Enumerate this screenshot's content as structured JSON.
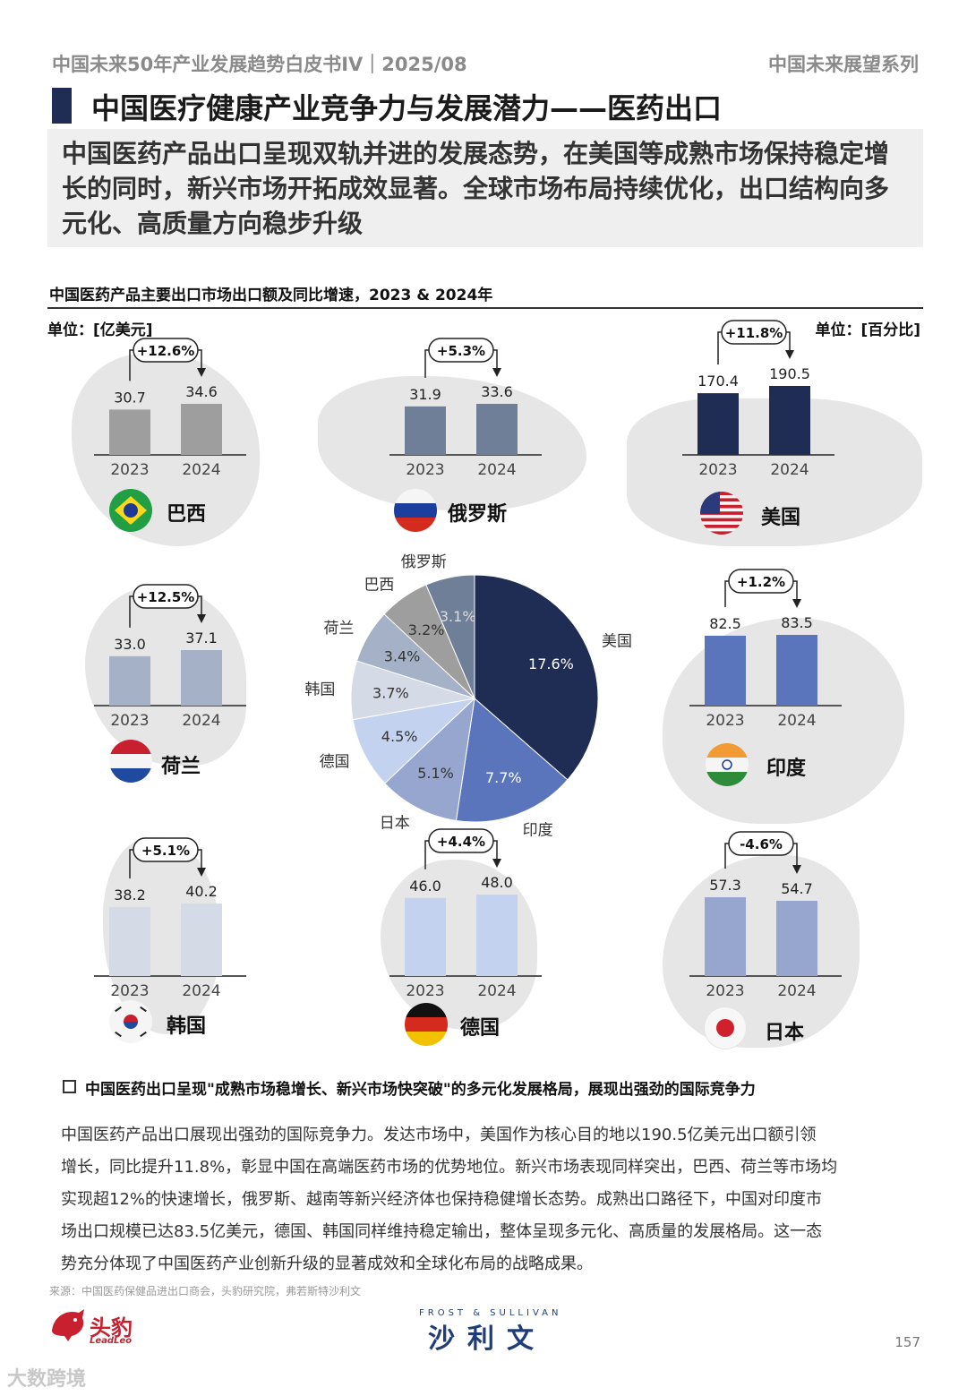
{
  "header": {
    "left": "中国未来50年产业发展趋势白皮书IV｜2025/08",
    "right": "中国未来展望系列"
  },
  "title": "中国医疗健康产业竞争力与发展潜力——医药出口",
  "summary": "中国医药产品出口呈现双轨并进的发展态势，在美国等成熟市场保持稳定增长的同时，新兴市场开拓成效显著。全球市场布局持续优化，出口结构向多元化、高质量方向稳步升级",
  "chart_heading": "中国医药产品主要出口市场出口额及同比增速，2023 & 2024年",
  "unit_left": "单位：[亿美元]",
  "unit_right": "单位：[百分比]",
  "chart_data": [
    {
      "type": "bar",
      "market": "巴西",
      "categories": [
        "2023",
        "2024"
      ],
      "values": [
        30.7,
        34.6
      ],
      "growth": "+12.6%",
      "color": "#9e9e9e",
      "flag": "brazil-flag-icon"
    },
    {
      "type": "bar",
      "market": "俄罗斯",
      "categories": [
        "2023",
        "2024"
      ],
      "values": [
        31.9,
        33.6
      ],
      "growth": "+5.3%",
      "color": "#6f7f97",
      "flag": "russia-flag-icon"
    },
    {
      "type": "bar",
      "market": "美国",
      "categories": [
        "2023",
        "2024"
      ],
      "values": [
        170.4,
        190.5
      ],
      "growth": "+11.8%",
      "color": "#1f2d54",
      "flag": "usa-flag-icon"
    },
    {
      "type": "bar",
      "market": "荷兰",
      "categories": [
        "2023",
        "2024"
      ],
      "values": [
        33.0,
        37.1
      ],
      "growth": "+12.5%",
      "color": "#a5b1c6",
      "flag": "netherlands-flag-icon"
    },
    {
      "type": "bar",
      "market": "印度",
      "categories": [
        "2023",
        "2024"
      ],
      "values": [
        82.5,
        83.5
      ],
      "growth": "+1.2%",
      "color": "#5b75bd",
      "flag": "india-flag-icon"
    },
    {
      "type": "bar",
      "market": "韩国",
      "categories": [
        "2023",
        "2024"
      ],
      "values": [
        38.2,
        40.2
      ],
      "growth": "+5.1%",
      "color": "#d4dae6",
      "flag": "korea-flag-icon"
    },
    {
      "type": "bar",
      "market": "德国",
      "categories": [
        "2023",
        "2024"
      ],
      "values": [
        46.0,
        48.0
      ],
      "growth": "+4.4%",
      "color": "#c3d3ef",
      "flag": "germany-flag-icon"
    },
    {
      "type": "bar",
      "market": "日本",
      "categories": [
        "2023",
        "2024"
      ],
      "values": [
        57.3,
        54.7
      ],
      "growth": "-4.6%",
      "color": "#97a6cf",
      "flag": "japan-flag-icon"
    },
    {
      "type": "pie",
      "slices": [
        {
          "label": "美国",
          "value": 17.6,
          "text": "17.6%",
          "color": "#1f2d54",
          "textColor": "#ffffff"
        },
        {
          "label": "印度",
          "value": 7.7,
          "text": "7.7%",
          "color": "#5b75bd",
          "textColor": "#ffffff"
        },
        {
          "label": "日本",
          "value": 5.1,
          "text": "5.1%",
          "color": "#97a6cf",
          "textColor": "#333333"
        },
        {
          "label": "德国",
          "value": 4.5,
          "text": "4.5%",
          "color": "#c3d3ef",
          "textColor": "#333333"
        },
        {
          "label": "韩国",
          "value": 3.7,
          "text": "3.7%",
          "color": "#d4dae6",
          "textColor": "#333333"
        },
        {
          "label": "荷兰",
          "value": 3.4,
          "text": "3.4%",
          "color": "#a5b1c6",
          "textColor": "#333333"
        },
        {
          "label": "巴西",
          "value": 3.2,
          "text": "3.2%",
          "color": "#9e9e9e",
          "textColor": "#333333"
        },
        {
          "label": "俄罗斯",
          "value": 3.1,
          "text": "3.1%",
          "color": "#6f7f97",
          "textColor": "#dddddd"
        }
      ]
    }
  ],
  "bullet": "中国医药出口呈现\"成熟市场稳增长、新兴市场快突破\"的多元化发展格局，展现出强劲的国际竞争力",
  "body_lines": [
    "中国医药产品出口展现出强劲的国际竞争力。发达市场中，美国作为核心目的地以190.5亿美元出口额引领",
    "增长，同比提升11.8%，彰显中国在高端医药市场的优势地位。新兴市场表现同样突出，巴西、荷兰等市场均",
    "实现超12%的快速增长，俄罗斯、越南等新兴经济体也保持稳健增长态势。成熟出口路径下，中国对印度市",
    "场出口规模已达83.5亿美元，德国、韩国同样维持稳定输出，整体呈现多元化、高质量的发展格局。这一态",
    "势充分体现了中国医药产业创新升级的显著成效和全球化布局的战略成果。"
  ],
  "source": "来源：中国医药保健品进出口商会，头豹研究院，弗若斯特沙利文",
  "footer": {
    "logo1": "头豹",
    "logo1_sub": "LeadLeo",
    "logo2_top": "FROST & SULLIVAN",
    "logo2": "沙利文",
    "page": "157"
  },
  "watermark": "大数跨境"
}
